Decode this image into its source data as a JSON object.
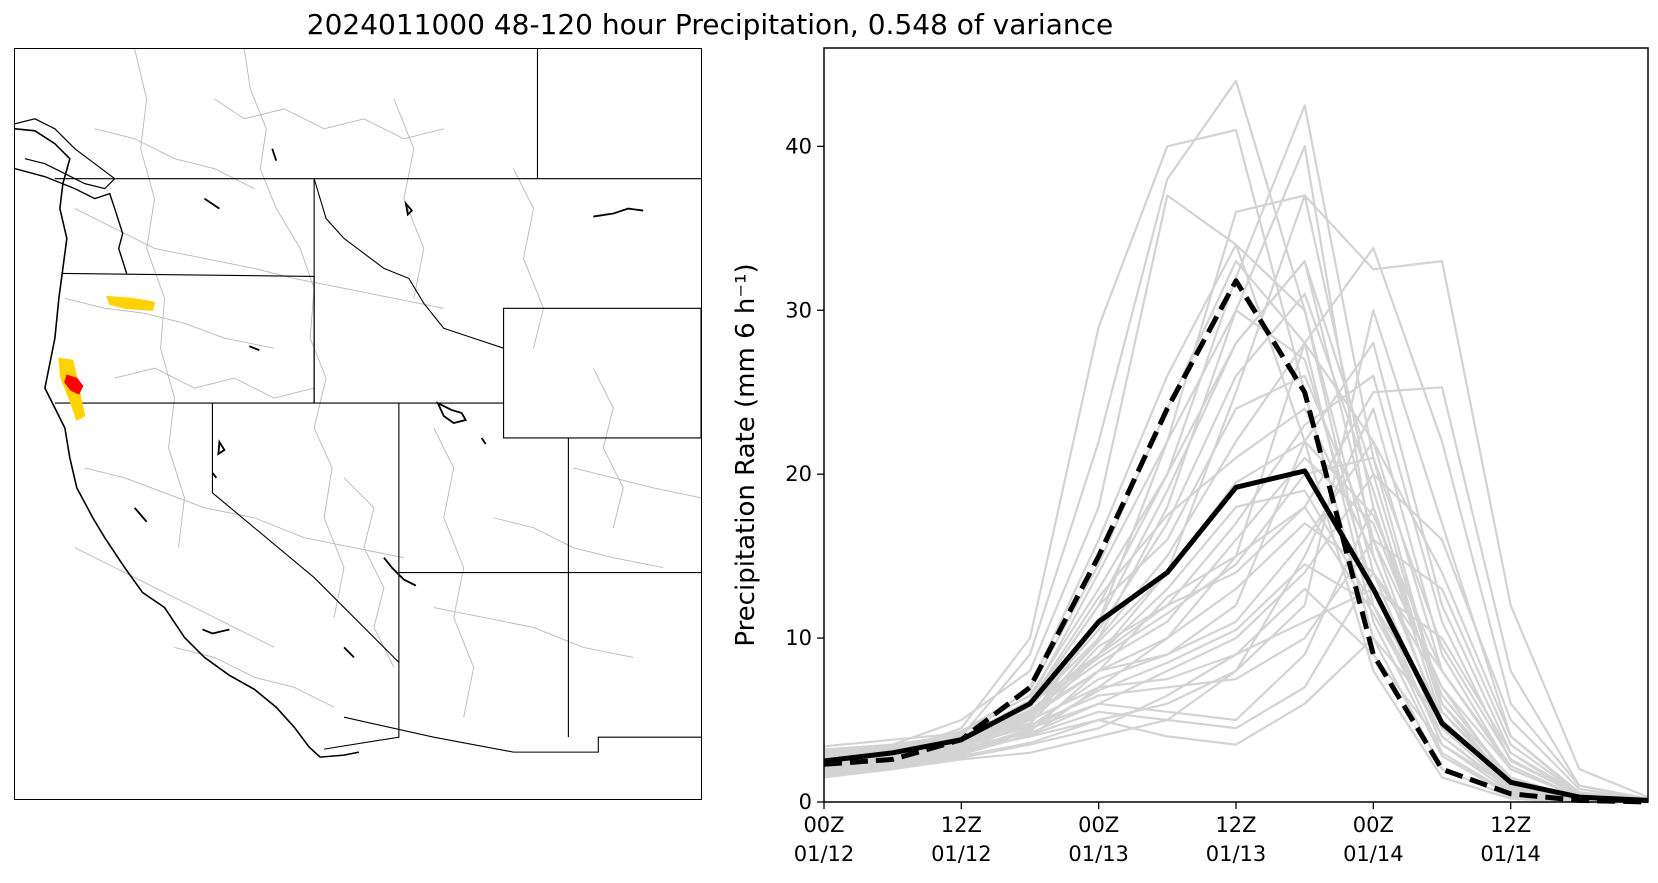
{
  "figure": {
    "title": "2024011000 48-120 hour Precipitation, 0.548 of variance"
  },
  "map": {
    "highlight_colors": {
      "high": "#ff0000",
      "medium": "#ffd200"
    },
    "line_colors": {
      "coast_and_states": "#000000",
      "basins": "#b8b8b8"
    }
  },
  "chart_data": {
    "type": "line",
    "title": "",
    "xlabel": "",
    "ylabel": "Precipitation Rate (mm 6 h⁻¹)",
    "x_tick_labels": [
      [
        "00Z",
        "01/12"
      ],
      [
        "12Z",
        "01/12"
      ],
      [
        "00Z",
        "01/13"
      ],
      [
        "12Z",
        "01/13"
      ],
      [
        "00Z",
        "01/14"
      ],
      [
        "12Z",
        "01/14"
      ]
    ],
    "x_ticks_hours": [
      0,
      12,
      24,
      36,
      48,
      60
    ],
    "xlim_hours": [
      0,
      72
    ],
    "yticks": [
      0,
      10,
      20,
      30,
      40
    ],
    "ylim": [
      0,
      46
    ],
    "x_hours": [
      0,
      6,
      12,
      18,
      24,
      30,
      36,
      42,
      48,
      54,
      60,
      66,
      72
    ],
    "colors": {
      "members": "#d3d3d3",
      "mean": "#000000",
      "dashed": "#000000"
    },
    "series": [
      {
        "style": "solid-thick",
        "values": [
          2.5,
          3.0,
          3.8,
          6.0,
          11.0,
          14.0,
          19.2,
          20.2,
          13.0,
          4.8,
          1.2,
          0.3,
          0.1
        ]
      },
      {
        "style": "dashed-thick",
        "values": [
          2.3,
          2.6,
          3.8,
          7.0,
          15.0,
          24.0,
          31.8,
          25.0,
          9.0,
          2.0,
          0.5,
          0.1,
          0.0
        ]
      }
    ],
    "ensemble_members": [
      [
        2.0,
        2.5,
        4.0,
        9.0,
        22.0,
        38.0,
        44.0,
        30.0,
        12.0,
        3.0,
        0.5,
        0.1,
        0.0
      ],
      [
        2.5,
        3.0,
        4.5,
        10.0,
        29.0,
        40.0,
        41.0,
        25.0,
        10.0,
        2.0,
        0.3,
        0.1,
        0.0
      ],
      [
        3.0,
        3.5,
        5.0,
        8.0,
        18.0,
        37.0,
        34.0,
        22.0,
        8.0,
        1.5,
        0.2,
        0.0,
        0.0
      ],
      [
        2.2,
        2.8,
        3.6,
        6.0,
        12.0,
        20.0,
        32.0,
        42.5,
        21.0,
        6.0,
        1.0,
        0.2,
        0.0
      ],
      [
        1.8,
        2.2,
        3.0,
        5.0,
        10.0,
        18.0,
        30.0,
        40.0,
        15.0,
        5.0,
        0.8,
        0.1,
        0.0
      ],
      [
        2.4,
        2.9,
        3.5,
        5.5,
        9.0,
        14.0,
        25.0,
        37.0,
        32.5,
        33.0,
        12.0,
        2.0,
        0.3
      ],
      [
        2.0,
        2.4,
        3.2,
        4.0,
        7.0,
        10.0,
        15.0,
        28.0,
        33.8,
        22.0,
        6.0,
        1.0,
        0.2
      ],
      [
        3.0,
        3.3,
        4.0,
        6.0,
        9.0,
        12.0,
        14.0,
        18.0,
        25.0,
        25.3,
        8.0,
        1.0,
        0.1
      ],
      [
        1.5,
        2.0,
        2.6,
        3.0,
        4.0,
        5.0,
        8.0,
        12.0,
        30.0,
        17.0,
        4.0,
        0.5,
        0.0
      ],
      [
        2.6,
        3.0,
        3.8,
        7.0,
        16.0,
        26.0,
        34.0,
        30.0,
        14.0,
        4.0,
        0.7,
        0.1,
        0.0
      ],
      [
        2.2,
        2.6,
        3.4,
        5.0,
        11.0,
        22.0,
        36.0,
        37.0,
        18.0,
        5.0,
        1.0,
        0.1,
        0.0
      ],
      [
        3.4,
        3.8,
        4.2,
        6.5,
        13.0,
        20.0,
        28.0,
        33.0,
        20.0,
        6.0,
        1.5,
        0.2,
        0.0
      ],
      [
        2.8,
        3.1,
        3.6,
        5.2,
        8.0,
        9.0,
        12.0,
        22.0,
        28.0,
        12.0,
        3.0,
        0.3,
        0.0
      ],
      [
        2.0,
        2.5,
        3.5,
        6.0,
        12.0,
        16.0,
        24.0,
        26.0,
        16.0,
        7.0,
        1.0,
        0.2,
        0.0
      ],
      [
        1.9,
        2.3,
        3.0,
        4.5,
        6.0,
        8.0,
        10.0,
        14.0,
        20.0,
        16.0,
        5.0,
        0.8,
        0.1
      ],
      [
        2.5,
        2.9,
        3.7,
        5.8,
        10.0,
        15.0,
        22.0,
        28.0,
        22.0,
        8.0,
        2.0,
        0.3,
        0.0
      ],
      [
        3.2,
        3.5,
        4.1,
        5.0,
        7.0,
        7.5,
        9.0,
        11.0,
        13.0,
        10.0,
        3.0,
        0.5,
        0.1
      ],
      [
        2.1,
        2.6,
        3.3,
        4.8,
        9.0,
        13.0,
        18.0,
        19.0,
        12.0,
        4.0,
        0.8,
        0.1,
        0.0
      ],
      [
        2.7,
        3.1,
        3.9,
        6.2,
        14.0,
        22.0,
        30.0,
        27.0,
        13.0,
        3.5,
        0.6,
        0.1,
        0.0
      ],
      [
        2.3,
        2.7,
        3.3,
        4.2,
        6.0,
        5.5,
        5.0,
        9.0,
        18.0,
        6.0,
        1.0,
        0.2,
        0.0
      ],
      [
        1.7,
        2.1,
        2.8,
        3.6,
        5.0,
        6.0,
        8.0,
        15.0,
        24.0,
        9.0,
        2.0,
        0.3,
        0.0
      ],
      [
        2.9,
        3.2,
        3.8,
        5.5,
        8.5,
        11.0,
        16.0,
        21.0,
        17.0,
        6.5,
        1.4,
        0.2,
        0.0
      ],
      [
        2.4,
        2.8,
        3.5,
        5.0,
        9.5,
        12.0,
        17.0,
        23.0,
        26.0,
        11.0,
        2.5,
        0.4,
        0.0
      ],
      [
        2.0,
        2.4,
        3.1,
        4.0,
        5.0,
        4.0,
        3.5,
        6.0,
        10.0,
        5.0,
        1.2,
        0.2,
        0.0
      ],
      [
        3.1,
        3.4,
        4.0,
        5.8,
        10.5,
        17.0,
        26.0,
        31.0,
        19.0,
        5.5,
        1.0,
        0.2,
        0.0
      ],
      [
        2.6,
        2.9,
        3.7,
        5.4,
        8.0,
        10.0,
        13.0,
        17.0,
        14.0,
        7.0,
        2.0,
        0.3,
        0.0
      ],
      [
        2.2,
        2.6,
        3.4,
        4.6,
        7.5,
        9.0,
        11.0,
        16.0,
        22.0,
        14.0,
        4.0,
        0.6,
        0.1
      ],
      [
        2.5,
        2.8,
        3.6,
        5.1,
        11.0,
        19.0,
        28.0,
        33.0,
        16.0,
        4.5,
        0.8,
        0.1,
        0.0
      ],
      [
        1.6,
        2.0,
        2.7,
        3.5,
        4.5,
        6.5,
        9.0,
        13.0,
        9.0,
        3.5,
        0.9,
        0.1,
        0.0
      ],
      [
        2.8,
        3.2,
        3.9,
        6.1,
        12.5,
        17.5,
        21.0,
        24.0,
        15.0,
        5.0,
        1.1,
        0.2,
        0.0
      ],
      [
        2.3,
        2.7,
        3.4,
        4.7,
        6.5,
        7.0,
        7.5,
        10.0,
        16.0,
        13.0,
        3.5,
        0.5,
        0.0
      ],
      [
        2.0,
        2.3,
        3.0,
        4.3,
        8.0,
        12.5,
        15.0,
        18.0,
        11.5,
        4.0,
        0.7,
        0.1,
        0.0
      ],
      [
        2.9,
        3.3,
        4.3,
        6.8,
        14.5,
        24.0,
        33.0,
        28.0,
        11.0,
        2.8,
        0.4,
        0.0,
        0.0
      ],
      [
        2.1,
        2.5,
        3.2,
        4.4,
        6.8,
        8.5,
        10.5,
        14.5,
        12.0,
        5.5,
        1.3,
        0.2,
        0.0
      ],
      [
        2.4,
        2.8,
        3.5,
        5.3,
        9.8,
        14.0,
        19.5,
        22.0,
        17.5,
        8.0,
        2.2,
        0.3,
        0.0
      ],
      [
        1.8,
        2.2,
        2.9,
        4.1,
        5.5,
        5.0,
        4.5,
        7.0,
        14.0,
        8.0,
        2.0,
        0.3,
        0.0
      ],
      [
        2.7,
        3.0,
        3.7,
        5.6,
        8.8,
        11.5,
        14.5,
        20.0,
        21.0,
        9.5,
        2.6,
        0.4,
        0.1
      ]
    ]
  }
}
